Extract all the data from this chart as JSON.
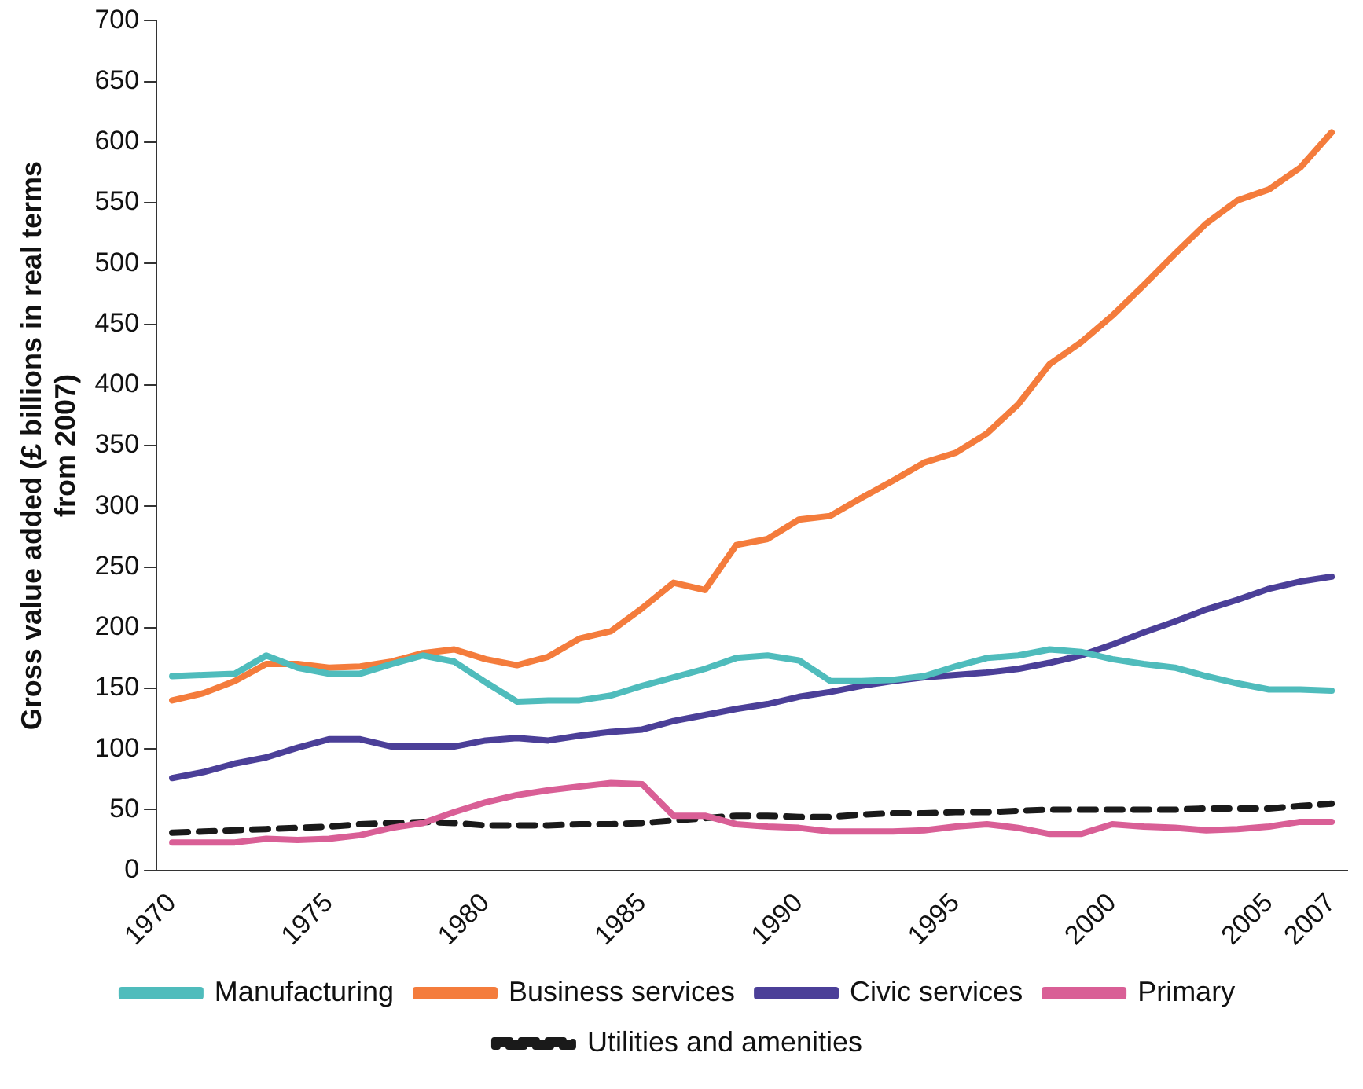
{
  "chart_data": {
    "type": "line",
    "ylabel": "Gross value added (£ billions in real terms from 2007)",
    "categories": [
      "1970",
      null,
      null,
      null,
      null,
      "1975",
      null,
      null,
      null,
      null,
      "1980",
      null,
      null,
      null,
      null,
      "1985",
      null,
      null,
      null,
      null,
      "1990",
      null,
      null,
      null,
      null,
      "1995",
      null,
      null,
      null,
      null,
      "2000",
      null,
      null,
      null,
      null,
      "2005",
      null,
      "2007"
    ],
    "ylim": [
      0,
      700
    ],
    "yticks": [
      0,
      50,
      100,
      150,
      200,
      250,
      300,
      350,
      400,
      450,
      500,
      550,
      600,
      650,
      700
    ],
    "grid": false,
    "legend": "bottom",
    "marker": "none",
    "series": [
      {
        "name": "Manufacturing",
        "color": "#4fbcbc",
        "values": [
          160,
          161,
          162,
          177,
          167,
          162,
          162,
          170,
          177,
          172,
          155,
          139,
          140,
          140,
          144,
          152,
          159,
          166,
          175,
          177,
          173,
          156,
          156,
          157,
          160,
          168,
          175,
          177,
          182,
          180,
          174,
          170,
          167,
          160,
          154,
          149,
          149,
          148
        ]
      },
      {
        "name": "Business services",
        "color": "#f47c3c",
        "values": [
          140,
          146,
          156,
          170,
          170,
          167,
          168,
          172,
          179,
          182,
          174,
          169,
          176,
          191,
          197,
          216,
          237,
          231,
          268,
          273,
          289,
          292,
          307,
          321,
          336,
          344,
          360,
          384,
          417,
          435,
          457,
          482,
          508,
          533,
          552,
          561,
          579,
          608
        ]
      },
      {
        "name": "Civic services",
        "color": "#4b3f98",
        "values": [
          76,
          81,
          88,
          93,
          101,
          108,
          108,
          102,
          102,
          102,
          107,
          109,
          107,
          111,
          114,
          116,
          123,
          128,
          133,
          137,
          143,
          147,
          152,
          156,
          159,
          161,
          163,
          166,
          171,
          177,
          186,
          196,
          205,
          215,
          223,
          232,
          238,
          242
        ]
      },
      {
        "name": "Primary",
        "color": "#d95f96",
        "values": [
          23,
          23,
          23,
          26,
          25,
          26,
          29,
          35,
          39,
          48,
          56,
          62,
          66,
          69,
          72,
          71,
          45,
          45,
          38,
          36,
          35,
          32,
          32,
          32,
          33,
          36,
          38,
          35,
          30,
          30,
          38,
          36,
          35,
          33,
          34,
          36,
          40,
          40
        ]
      },
      {
        "name": "Utilities and amenities",
        "color": "#1a1a1a",
        "line_style": "dashed",
        "values": [
          31,
          32,
          33,
          34,
          35,
          36,
          38,
          39,
          40,
          39,
          37,
          37,
          37,
          38,
          38,
          39,
          41,
          43,
          45,
          45,
          44,
          44,
          46,
          47,
          47,
          48,
          48,
          49,
          50,
          50,
          50,
          50,
          50,
          51,
          51,
          51,
          53,
          55
        ]
      }
    ]
  }
}
